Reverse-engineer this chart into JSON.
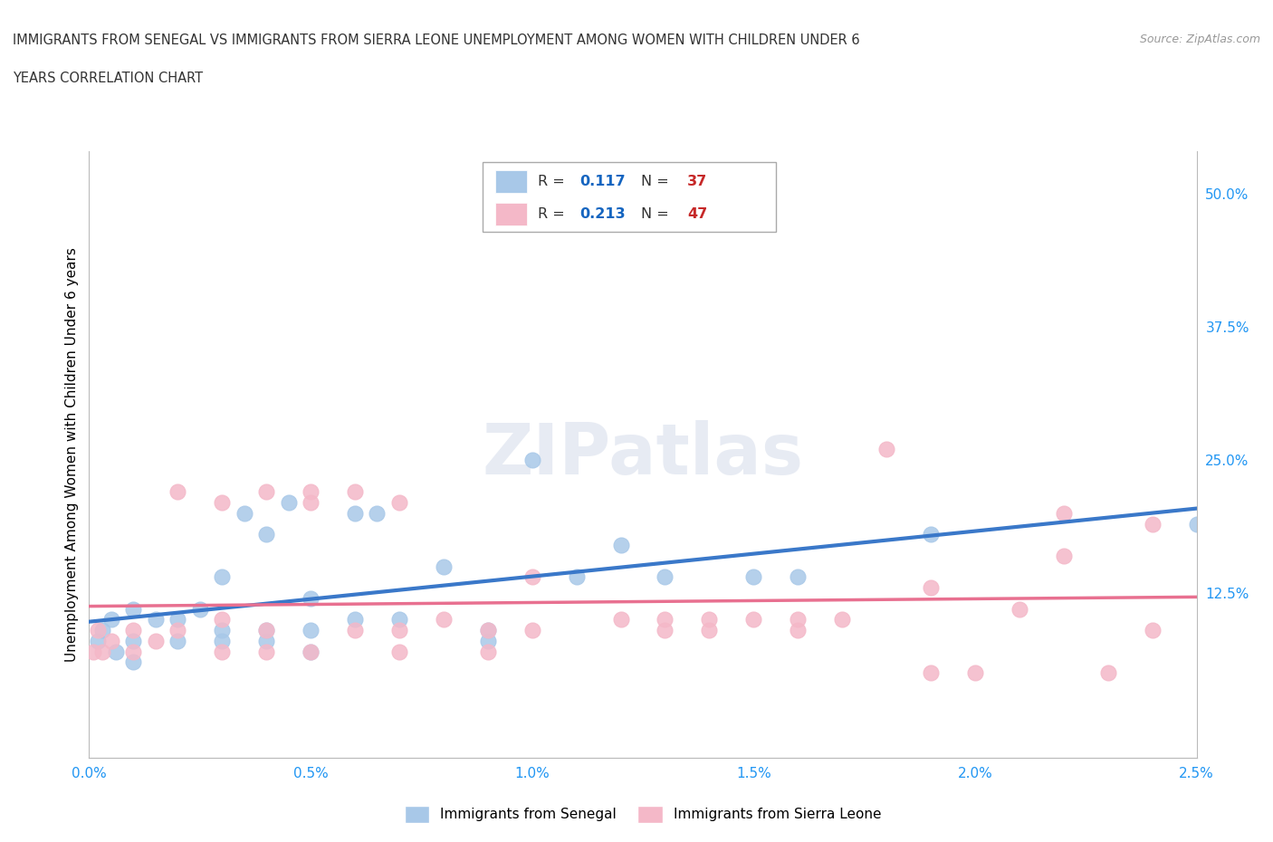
{
  "title_line1": "IMMIGRANTS FROM SENEGAL VS IMMIGRANTS FROM SIERRA LEONE UNEMPLOYMENT AMONG WOMEN WITH CHILDREN UNDER 6",
  "title_line2": "YEARS CORRELATION CHART",
  "source_text": "Source: ZipAtlas.com",
  "xlabel_senegal": "Immigrants from Senegal",
  "xlabel_sierra": "Immigrants from Sierra Leone",
  "ylabel": "Unemployment Among Women with Children Under 6 years",
  "senegal_color": "#a8c8e8",
  "sierra_color": "#f4b8c8",
  "senegal_line_color": "#3a78c9",
  "sierra_line_color": "#e87090",
  "R_senegal": 0.117,
  "N_senegal": 37,
  "R_sierra": 0.213,
  "N_sierra": 47,
  "xlim": [
    0.0,
    0.025
  ],
  "ylim": [
    -0.03,
    0.54
  ],
  "x_ticks": [
    0.0,
    0.005,
    0.01,
    0.015,
    0.02,
    0.025
  ],
  "y_ticks_right": [
    0.125,
    0.25,
    0.375,
    0.5
  ],
  "senegal_x": [
    0.0002,
    0.0003,
    0.0005,
    0.0006,
    0.001,
    0.001,
    0.001,
    0.0015,
    0.002,
    0.002,
    0.0025,
    0.003,
    0.003,
    0.003,
    0.0035,
    0.004,
    0.004,
    0.004,
    0.0045,
    0.005,
    0.005,
    0.005,
    0.006,
    0.006,
    0.0065,
    0.007,
    0.008,
    0.009,
    0.009,
    0.01,
    0.011,
    0.012,
    0.013,
    0.015,
    0.016,
    0.019,
    0.025
  ],
  "senegal_y": [
    0.08,
    0.09,
    0.1,
    0.07,
    0.08,
    0.11,
    0.06,
    0.1,
    0.08,
    0.1,
    0.11,
    0.14,
    0.09,
    0.08,
    0.2,
    0.09,
    0.08,
    0.18,
    0.21,
    0.12,
    0.09,
    0.07,
    0.2,
    0.1,
    0.2,
    0.1,
    0.15,
    0.08,
    0.09,
    0.25,
    0.14,
    0.17,
    0.14,
    0.14,
    0.14,
    0.18,
    0.19
  ],
  "sierra_x": [
    0.0001,
    0.0002,
    0.0003,
    0.0005,
    0.001,
    0.001,
    0.0015,
    0.002,
    0.002,
    0.003,
    0.003,
    0.003,
    0.004,
    0.004,
    0.004,
    0.005,
    0.005,
    0.005,
    0.006,
    0.006,
    0.007,
    0.007,
    0.007,
    0.008,
    0.009,
    0.009,
    0.01,
    0.01,
    0.012,
    0.013,
    0.013,
    0.014,
    0.014,
    0.015,
    0.016,
    0.016,
    0.017,
    0.018,
    0.019,
    0.019,
    0.02,
    0.021,
    0.022,
    0.022,
    0.023,
    0.024,
    0.024
  ],
  "sierra_y": [
    0.07,
    0.09,
    0.07,
    0.08,
    0.09,
    0.07,
    0.08,
    0.09,
    0.22,
    0.21,
    0.07,
    0.1,
    0.22,
    0.09,
    0.07,
    0.22,
    0.21,
    0.07,
    0.22,
    0.09,
    0.21,
    0.09,
    0.07,
    0.1,
    0.07,
    0.09,
    0.09,
    0.14,
    0.1,
    0.09,
    0.1,
    0.1,
    0.09,
    0.1,
    0.09,
    0.1,
    0.1,
    0.26,
    0.13,
    0.05,
    0.05,
    0.11,
    0.2,
    0.16,
    0.05,
    0.09,
    0.19
  ],
  "watermark": "ZIPatlas",
  "background_color": "#ffffff",
  "grid_color": "#dddddd",
  "legend_text_color": "#1565c0",
  "legend_n_color": "#c62828"
}
